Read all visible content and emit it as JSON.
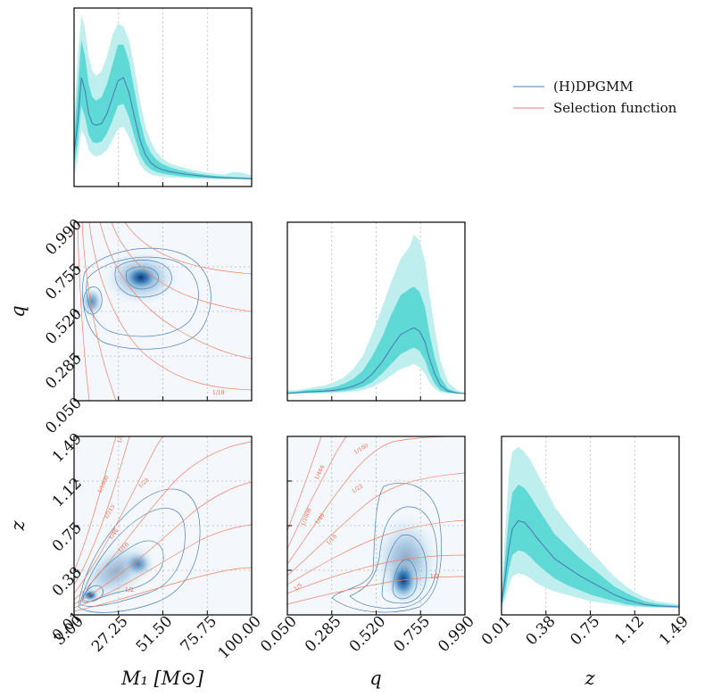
{
  "chart_data": {
    "type": "corner",
    "title": "",
    "parameters": [
      {
        "key": "M1",
        "label": "M₁ [M⊙]",
        "range": [
          3.0,
          100.0
        ],
        "ticks": [
          "3.00",
          "27.25",
          "51.50",
          "75.75",
          "100.00"
        ]
      },
      {
        "key": "q",
        "label": "q",
        "range": [
          0.05,
          0.99
        ],
        "ticks": [
          "0.050",
          "0.285",
          "0.520",
          "0.755",
          "0.990"
        ]
      },
      {
        "key": "z",
        "label": "z",
        "range": [
          0.01,
          1.49
        ],
        "ticks": [
          "0.01",
          "0.38",
          "0.75",
          "1.12",
          "1.49"
        ]
      }
    ],
    "legend": {
      "position": "top-right",
      "entries": [
        {
          "label": "(H)DPGMM",
          "color": "#4a7fb5"
        },
        {
          "label": "Selection function",
          "color": "#f07f62"
        }
      ]
    },
    "colors": {
      "median": "#4a7fb5",
      "band_inner": "#5fd9d6",
      "band_outer": "#bfeeee",
      "selection": "#f07f62",
      "density_low": "#f4f8fd",
      "density_high": "#08306b"
    },
    "marginals": {
      "M1": {
        "x": [
          3,
          5,
          7,
          9,
          11,
          13,
          15,
          18,
          21,
          24,
          27,
          30,
          33,
          36,
          39,
          42,
          45,
          48,
          51,
          55,
          60,
          65,
          70,
          75,
          80,
          85,
          90,
          95,
          100
        ],
        "median": [
          0.16,
          0.35,
          0.62,
          0.54,
          0.4,
          0.34,
          0.33,
          0.34,
          0.4,
          0.5,
          0.6,
          0.62,
          0.53,
          0.38,
          0.24,
          0.15,
          0.1,
          0.075,
          0.06,
          0.048,
          0.038,
          0.03,
          0.024,
          0.018,
          0.013,
          0.01,
          0.008,
          0.006,
          0.004
        ],
        "inner_lo": [
          0.08,
          0.22,
          0.45,
          0.38,
          0.27,
          0.23,
          0.22,
          0.23,
          0.28,
          0.36,
          0.45,
          0.46,
          0.38,
          0.26,
          0.15,
          0.09,
          0.06,
          0.045,
          0.036,
          0.028,
          0.02,
          0.015,
          0.011,
          0.008,
          0.006,
          0.004,
          0.003,
          0.002,
          0.001
        ],
        "inner_hi": [
          0.25,
          0.55,
          0.85,
          0.75,
          0.58,
          0.5,
          0.48,
          0.5,
          0.58,
          0.7,
          0.82,
          0.82,
          0.72,
          0.54,
          0.36,
          0.23,
          0.16,
          0.12,
          0.095,
          0.075,
          0.058,
          0.046,
          0.036,
          0.028,
          0.022,
          0.018,
          0.016,
          0.012,
          0.009
        ],
        "outer_lo": [
          0.02,
          0.12,
          0.3,
          0.26,
          0.18,
          0.15,
          0.14,
          0.15,
          0.18,
          0.24,
          0.31,
          0.32,
          0.26,
          0.17,
          0.09,
          0.05,
          0.03,
          0.022,
          0.016,
          0.012,
          0.009,
          0.006,
          0.004,
          0.003,
          0.002,
          0.001,
          0.001,
          0.0,
          0.0
        ],
        "outer_hi": [
          0.35,
          0.75,
          1.0,
          0.92,
          0.75,
          0.66,
          0.63,
          0.66,
          0.75,
          0.88,
          0.95,
          0.93,
          0.85,
          0.68,
          0.48,
          0.32,
          0.23,
          0.17,
          0.13,
          0.1,
          0.08,
          0.065,
          0.052,
          0.042,
          0.035,
          0.03,
          0.045,
          0.04,
          0.025
        ]
      },
      "q": {
        "x": [
          0.05,
          0.1,
          0.15,
          0.2,
          0.25,
          0.3,
          0.35,
          0.4,
          0.45,
          0.5,
          0.55,
          0.6,
          0.65,
          0.7,
          0.72,
          0.75,
          0.78,
          0.8,
          0.83,
          0.86,
          0.9,
          0.95,
          0.99
        ],
        "median": [
          0.0,
          0.005,
          0.01,
          0.012,
          0.015,
          0.02,
          0.03,
          0.045,
          0.07,
          0.12,
          0.19,
          0.28,
          0.36,
          0.39,
          0.4,
          0.38,
          0.31,
          0.22,
          0.12,
          0.05,
          0.015,
          0.003,
          0.0
        ],
        "inner_lo": [
          0.0,
          0.002,
          0.005,
          0.006,
          0.008,
          0.011,
          0.016,
          0.025,
          0.04,
          0.07,
          0.12,
          0.18,
          0.24,
          0.27,
          0.28,
          0.26,
          0.2,
          0.13,
          0.06,
          0.02,
          0.005,
          0.001,
          0.0
        ],
        "inner_hi": [
          0.01,
          0.012,
          0.02,
          0.025,
          0.03,
          0.04,
          0.06,
          0.09,
          0.14,
          0.23,
          0.34,
          0.48,
          0.6,
          0.64,
          0.65,
          0.62,
          0.52,
          0.38,
          0.22,
          0.1,
          0.03,
          0.008,
          0.002
        ],
        "outer_lo": [
          0.0,
          0.0,
          0.001,
          0.002,
          0.003,
          0.005,
          0.008,
          0.013,
          0.022,
          0.04,
          0.07,
          0.11,
          0.15,
          0.17,
          0.18,
          0.16,
          0.12,
          0.07,
          0.03,
          0.008,
          0.002,
          0.0,
          0.0
        ],
        "outer_hi": [
          0.02,
          0.02,
          0.03,
          0.04,
          0.05,
          0.07,
          0.1,
          0.15,
          0.23,
          0.37,
          0.52,
          0.68,
          0.82,
          0.9,
          0.97,
          0.93,
          0.8,
          0.62,
          0.4,
          0.2,
          0.07,
          0.02,
          0.005
        ]
      },
      "z": {
        "x": [
          0.01,
          0.04,
          0.07,
          0.1,
          0.15,
          0.2,
          0.25,
          0.3,
          0.38,
          0.45,
          0.55,
          0.65,
          0.75,
          0.85,
          0.95,
          1.05,
          1.12,
          1.2,
          1.3,
          1.4,
          1.49
        ],
        "median": [
          0.03,
          0.18,
          0.36,
          0.48,
          0.53,
          0.52,
          0.48,
          0.43,
          0.36,
          0.3,
          0.25,
          0.2,
          0.16,
          0.12,
          0.08,
          0.05,
          0.035,
          0.02,
          0.012,
          0.008,
          0.005
        ],
        "inner_lo": [
          0.01,
          0.1,
          0.23,
          0.32,
          0.35,
          0.34,
          0.31,
          0.27,
          0.22,
          0.18,
          0.14,
          0.11,
          0.08,
          0.06,
          0.04,
          0.02,
          0.014,
          0.008,
          0.004,
          0.002,
          0.001
        ],
        "inner_hi": [
          0.06,
          0.3,
          0.55,
          0.7,
          0.75,
          0.73,
          0.68,
          0.62,
          0.53,
          0.45,
          0.38,
          0.31,
          0.25,
          0.19,
          0.13,
          0.09,
          0.065,
          0.04,
          0.025,
          0.018,
          0.012
        ],
        "outer_lo": [
          0.0,
          0.05,
          0.13,
          0.19,
          0.21,
          0.2,
          0.18,
          0.15,
          0.12,
          0.1,
          0.08,
          0.06,
          0.04,
          0.03,
          0.02,
          0.01,
          0.006,
          0.003,
          0.001,
          0.0,
          0.0
        ],
        "outer_hi": [
          0.1,
          0.45,
          0.82,
          0.95,
          0.98,
          0.95,
          0.9,
          0.83,
          0.72,
          0.62,
          0.52,
          0.43,
          0.35,
          0.27,
          0.19,
          0.13,
          0.095,
          0.065,
          0.04,
          0.03,
          0.02
        ]
      }
    },
    "joint_M1_q": {
      "peaks": [
        {
          "x": 35.0,
          "y": 0.72,
          "weight": 1.0
        },
        {
          "x": 9.0,
          "y": 0.57,
          "weight": 0.45
        }
      ],
      "selection_labels": [
        "1/10"
      ]
    },
    "joint_M1_z": {
      "peaks": [
        {
          "x": 9.0,
          "y": 0.15,
          "weight": 1.0
        },
        {
          "x": 33.0,
          "y": 0.36,
          "weight": 0.6
        }
      ],
      "selection_labels": [
        "1/1000",
        "1/215",
        "1/46",
        "1/10",
        "1/2",
        "1/22",
        "1/4"
      ]
    },
    "joint_q_z": {
      "peaks": [
        {
          "x": 0.68,
          "y": 0.33,
          "weight": 1.0
        },
        {
          "x": 0.72,
          "y": 0.55,
          "weight": 0.5
        }
      ],
      "selection_labels": [
        "1/1000",
        "1/464",
        "1/100",
        "1/46",
        "1/22",
        "1/10",
        "1/5",
        "1/2"
      ]
    }
  }
}
